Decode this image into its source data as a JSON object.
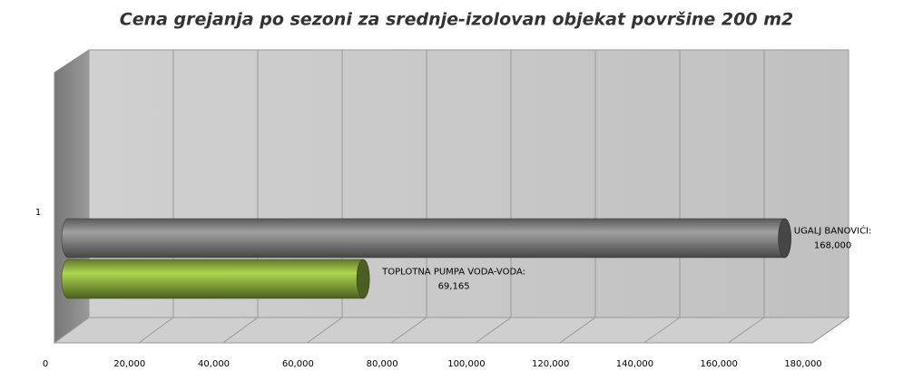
{
  "chart_data": {
    "type": "bar3d",
    "title": "Cena grejanja po sezoni za srednje-izolovan objekat površine 200 m2",
    "categories": [
      "1"
    ],
    "series": [
      {
        "name": "UGALJ BANOVIĆI:",
        "color": "#808080",
        "values": [
          168000
        ],
        "value_labels": [
          "168,000"
        ]
      },
      {
        "name": "TOPLOTNA PUMPA VODA-VODA:",
        "color": "#8aac3e",
        "values": [
          69165
        ],
        "value_labels": [
          "69,165"
        ]
      }
    ],
    "xlim": [
      0,
      180000
    ],
    "xticks": [
      0,
      {
        "value": 20000,
        "label": "20,000"
      },
      {
        "value": 40000,
        "label": "40,000"
      },
      {
        "value": 60000,
        "label": "60,000"
      },
      {
        "value": 80000,
        "label": "80,000"
      },
      {
        "value": 100000,
        "label": "100,000"
      },
      {
        "value": 120000,
        "label": "120,000"
      },
      {
        "value": 140000,
        "label": "140,000"
      },
      {
        "value": 160000,
        "label": "160,000"
      },
      {
        "value": 180000,
        "label": "180,000"
      }
    ],
    "grid": true
  }
}
